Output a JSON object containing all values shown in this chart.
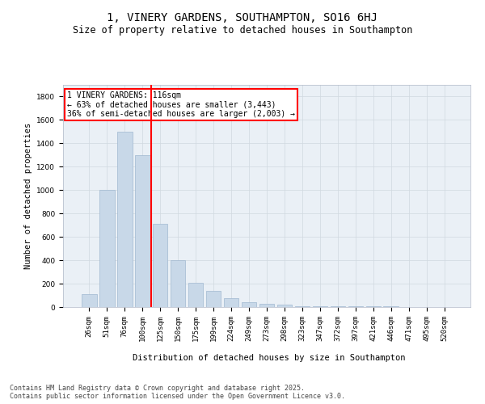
{
  "title_line1": "1, VINERY GARDENS, SOUTHAMPTON, SO16 6HJ",
  "title_line2": "Size of property relative to detached houses in Southampton",
  "xlabel": "Distribution of detached houses by size in Southampton",
  "ylabel": "Number of detached properties",
  "categories": [
    "26sqm",
    "51sqm",
    "76sqm",
    "100sqm",
    "125sqm",
    "150sqm",
    "175sqm",
    "199sqm",
    "224sqm",
    "249sqm",
    "273sqm",
    "298sqm",
    "323sqm",
    "347sqm",
    "372sqm",
    "397sqm",
    "421sqm",
    "446sqm",
    "471sqm",
    "495sqm",
    "520sqm"
  ],
  "values": [
    110,
    1000,
    1500,
    1300,
    710,
    400,
    210,
    135,
    75,
    40,
    30,
    20,
    10,
    10,
    10,
    10,
    5,
    5,
    0,
    0,
    0
  ],
  "bar_color": "#c8d8e8",
  "bar_edge_color": "#a0b8d0",
  "vline_color": "red",
  "annotation_title": "1 VINERY GARDENS: 116sqm",
  "annotation_line1": "← 63% of detached houses are smaller (3,443)",
  "annotation_line2": "36% of semi-detached houses are larger (2,003) →",
  "annotation_box_color": "red",
  "ylim": [
    0,
    1900
  ],
  "yticks": [
    0,
    200,
    400,
    600,
    800,
    1000,
    1200,
    1400,
    1600,
    1800
  ],
  "grid_color": "#d0d8e0",
  "background_color": "#eaf0f6",
  "footer_line1": "Contains HM Land Registry data © Crown copyright and database right 2025.",
  "footer_line2": "Contains public sector information licensed under the Open Government Licence v3.0.",
  "title_fontsize": 10,
  "subtitle_fontsize": 8.5,
  "axis_label_fontsize": 7.5,
  "tick_fontsize": 6.5,
  "annotation_fontsize": 7,
  "footer_fontsize": 6
}
